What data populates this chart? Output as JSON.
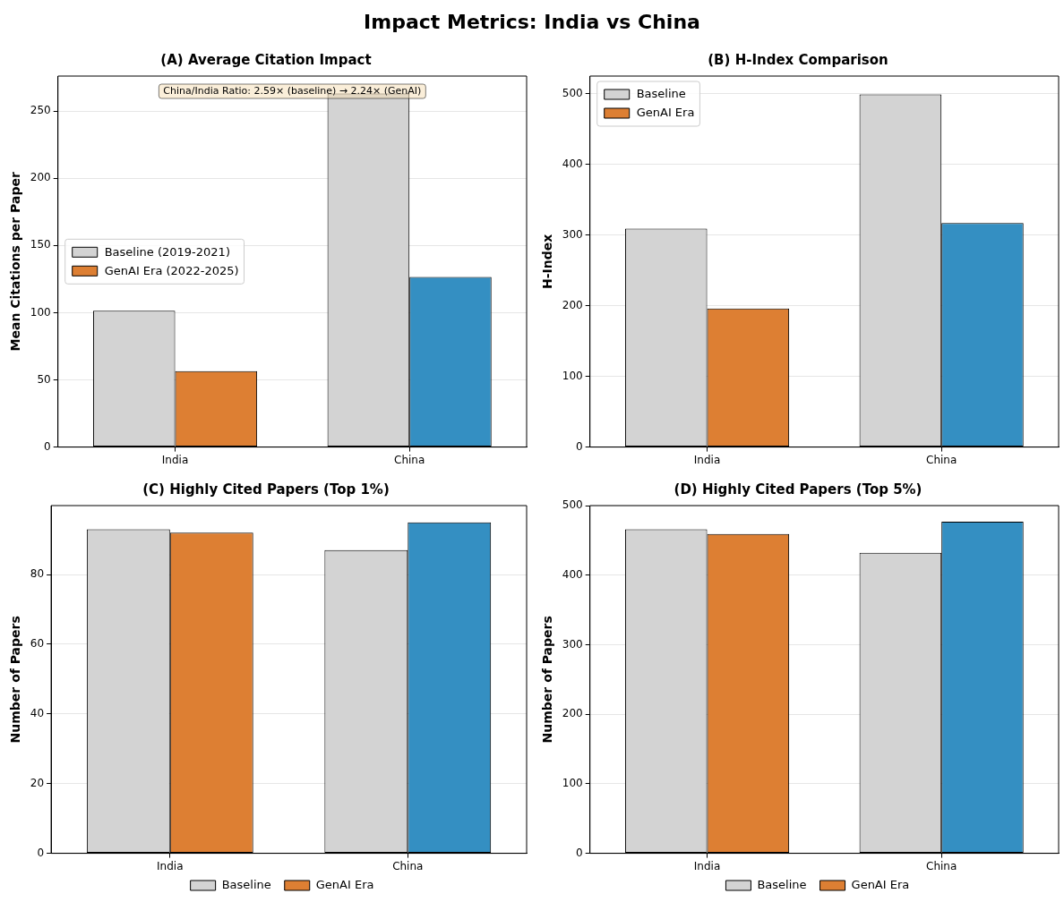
{
  "chart_data": [
    {
      "type": "other",
      "title": "Impact Metrics: India vs China"
    },
    {
      "type": "bar",
      "title": "(A) Average Citation Impact",
      "ylabel": "Mean Citations per Paper",
      "categories": [
        "India",
        "China"
      ],
      "series": [
        {
          "name": "Baseline (2019-2021)",
          "color": "#d3d3d3",
          "values": [
            101.5,
            263
          ]
        },
        {
          "name": "GenAI Era (2022-2025)",
          "color": "#dd7f33",
          "colors": [
            "#dd7f33",
            "#348fc2"
          ],
          "values": [
            56.5,
            126.5
          ]
        }
      ],
      "ylim": [
        0,
        276
      ],
      "yticks": [
        0,
        50,
        100,
        150,
        200,
        250
      ],
      "grid": "y",
      "legend": "center left",
      "annotations": [
        "China/India Ratio: 2.59× (baseline) → 2.24× (GenAI)"
      ]
    },
    {
      "type": "bar",
      "title": "(B) H-Index Comparison",
      "ylabel": "H-Index",
      "categories": [
        "India",
        "China"
      ],
      "series": [
        {
          "name": "Baseline",
          "color": "#d3d3d3",
          "values": [
            309,
            499
          ]
        },
        {
          "name": "GenAI Era",
          "color": "#dd7f33",
          "colors": [
            "#dd7f33",
            "#348fc2"
          ],
          "values": [
            196,
            317
          ]
        }
      ],
      "ylim": [
        0,
        525
      ],
      "yticks": [
        0,
        100,
        200,
        300,
        400,
        500
      ],
      "grid": "y",
      "legend": "top left"
    },
    {
      "type": "bar",
      "title": "(C) Highly Cited Papers (Top 1%)",
      "ylabel": "Number of Papers",
      "categories": [
        "India",
        "China"
      ],
      "series": [
        {
          "name": "Baseline",
          "color": "#d3d3d3",
          "values": [
            93,
            87
          ]
        },
        {
          "name": "GenAI Era",
          "color": "#dd7f33",
          "colors": [
            "#dd7f33",
            "#348fc2"
          ],
          "values": [
            92,
            95
          ]
        }
      ],
      "ylim": [
        0,
        99.8
      ],
      "yticks": [
        0,
        20,
        40,
        60,
        80
      ],
      "grid": "y",
      "legend": "bottom"
    },
    {
      "type": "bar",
      "title": "(D) Highly Cited Papers (Top 5%)",
      "ylabel": "Number of Papers",
      "categories": [
        "India",
        "China"
      ],
      "series": [
        {
          "name": "Baseline",
          "color": "#d3d3d3",
          "values": [
            466,
            432
          ]
        },
        {
          "name": "GenAI Era",
          "color": "#dd7f33",
          "colors": [
            "#dd7f33",
            "#348fc2"
          ],
          "values": [
            459,
            477
          ]
        }
      ],
      "ylim": [
        0,
        500
      ],
      "yticks": [
        0,
        100,
        200,
        300,
        400,
        500
      ],
      "grid": "y",
      "legend": "bottom"
    }
  ]
}
